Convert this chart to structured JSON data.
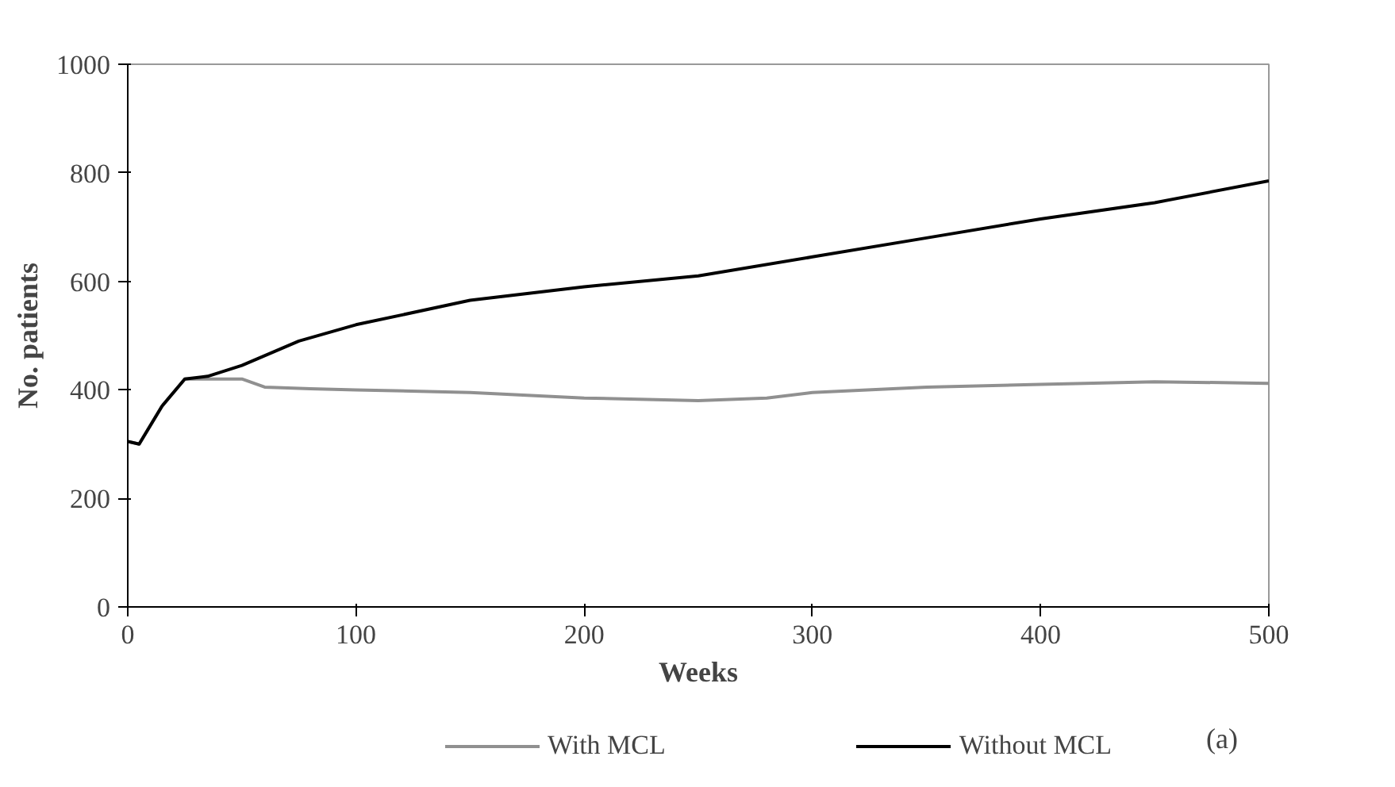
{
  "chart_data": {
    "type": "line",
    "xlabel": "Weeks",
    "ylabel": "No. patients",
    "xlim": [
      0,
      500
    ],
    "ylim": [
      0,
      1000
    ],
    "xticks": [
      0,
      100,
      200,
      300,
      400,
      500
    ],
    "yticks": [
      0,
      200,
      400,
      600,
      800,
      1000
    ],
    "grid": false,
    "legend": "bottom",
    "marker": "none",
    "line_style": "solid",
    "series": [
      {
        "name": "With MCL",
        "color": "#909090",
        "x": [
          0,
          5,
          15,
          25,
          35,
          50,
          60,
          80,
          100,
          150,
          200,
          250,
          280,
          300,
          350,
          400,
          450,
          500
        ],
        "values": [
          305,
          300,
          370,
          420,
          420,
          420,
          405,
          402,
          400,
          395,
          385,
          380,
          385,
          395,
          405,
          410,
          415,
          412
        ]
      },
      {
        "name": "Without MCL",
        "color": "#000000",
        "x": [
          0,
          5,
          15,
          25,
          35,
          50,
          75,
          100,
          150,
          200,
          250,
          300,
          350,
          400,
          450,
          500
        ],
        "values": [
          305,
          300,
          370,
          420,
          425,
          445,
          490,
          520,
          565,
          590,
          610,
          645,
          680,
          715,
          745,
          785
        ]
      }
    ],
    "annotations": [
      "(a)"
    ]
  }
}
